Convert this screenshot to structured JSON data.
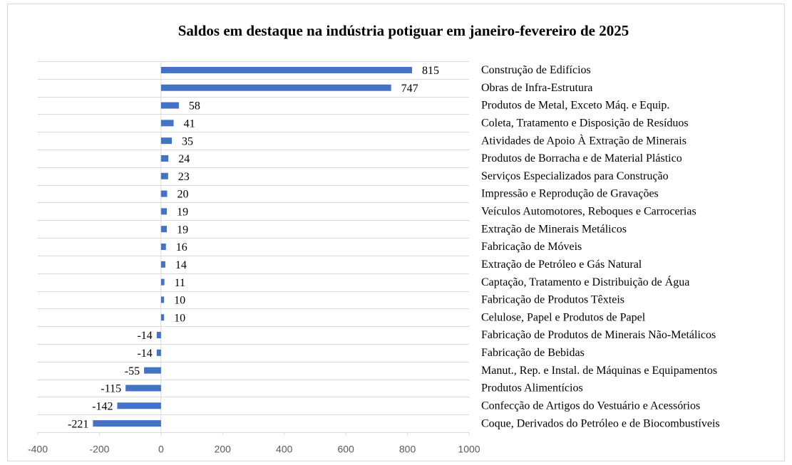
{
  "chart_data": {
    "type": "barh",
    "title": "Saldos em destaque na indústria potiguar em janeiro-fevereiro de 2025",
    "categories": [
      "Construção de Edifícios",
      "Obras de Infra-Estrutura",
      "Produtos de Metal, Exceto Máq. e Equip.",
      "Coleta, Tratamento e Disposição de Resíduos",
      "Atividades de Apoio À Extração de Minerais",
      "Produtos de Borracha e de Material Plástico",
      "Serviços Especializados para Construção",
      "Impressão e Reprodução de Gravações",
      "Veículos Automotores, Reboques e Carrocerias",
      "Extração de Minerais Metálicos",
      "Fabricação de Móveis",
      "Extração de Petróleo e Gás Natural",
      "Captação, Tratamento e Distribuição de Água",
      "Fabricação de Produtos Têxteis",
      "Celulose, Papel e Produtos de Papel",
      "Fabricação de Produtos de Minerais Não-Metálicos",
      "Fabricação de Bebidas",
      "Manut., Rep. e Instal. de Máquinas e Equipamentos",
      "Produtos Alimentícios",
      "Confecção de Artigos do Vestuário e Acessórios",
      "Coque, Derivados do Petróleo e de Biocombustíveis"
    ],
    "values": [
      815,
      747,
      58,
      41,
      35,
      24,
      23,
      20,
      19,
      19,
      16,
      14,
      11,
      10,
      10,
      -14,
      -14,
      -55,
      -115,
      -142,
      -221
    ],
    "color": "#4472c4",
    "xlim": [
      -400,
      1000
    ],
    "xticks": [
      -400,
      -200,
      0,
      200,
      400,
      600,
      800,
      1000
    ]
  }
}
